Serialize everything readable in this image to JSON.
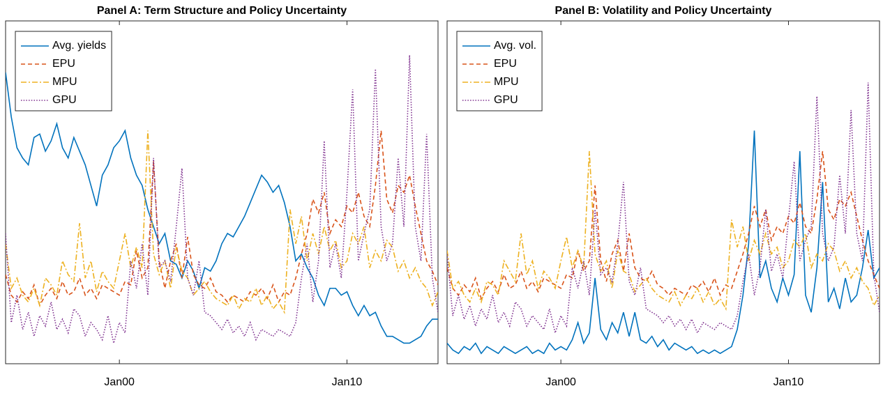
{
  "chart_data": [
    {
      "type": "line",
      "title": "Panel A: Term Structure and Policy Uncertainty",
      "legend": "upper left",
      "xlim": [
        1995,
        2014
      ],
      "ylim": [
        0,
        100
      ],
      "xticks": [
        {
          "value": 2000,
          "label": "Jan00"
        },
        {
          "value": 2010,
          "label": "Jan10"
        }
      ],
      "x": [
        1995,
        1995.25,
        1995.5,
        1995.75,
        1996,
        1996.25,
        1996.5,
        1996.75,
        1997,
        1997.25,
        1997.5,
        1997.75,
        1998,
        1998.25,
        1998.5,
        1998.75,
        1999,
        1999.25,
        1999.5,
        1999.75,
        2000,
        2000.25,
        2000.5,
        2000.75,
        2001,
        2001.25,
        2001.5,
        2001.75,
        2002,
        2002.25,
        2002.5,
        2002.75,
        2003,
        2003.25,
        2003.5,
        2003.75,
        2004,
        2004.25,
        2004.5,
        2004.75,
        2005,
        2005.25,
        2005.5,
        2005.75,
        2006,
        2006.25,
        2006.5,
        2006.75,
        2007,
        2007.25,
        2007.5,
        2007.75,
        2008,
        2008.25,
        2008.5,
        2008.75,
        2009,
        2009.25,
        2009.5,
        2009.75,
        2010,
        2010.25,
        2010.5,
        2010.75,
        2011,
        2011.25,
        2011.5,
        2011.75,
        2012,
        2012.25,
        2012.5,
        2012.75,
        2013,
        2013.25,
        2013.5,
        2013.75,
        2014
      ],
      "series": [
        {
          "name": "Avg. yields",
          "color": "#0072BD",
          "style": "solid",
          "values": [
            85,
            72,
            63,
            60,
            58,
            66,
            67,
            62,
            65,
            70,
            63,
            60,
            66,
            62,
            58,
            52,
            46,
            55,
            58,
            63,
            65,
            68,
            60,
            55,
            52,
            45,
            40,
            35,
            38,
            30,
            29,
            25,
            30,
            27,
            22,
            28,
            27,
            30,
            35,
            38,
            37,
            40,
            43,
            47,
            51,
            55,
            53,
            50,
            52,
            47,
            40,
            30,
            32,
            28,
            25,
            20,
            17,
            22,
            22,
            20,
            21,
            17,
            14,
            17,
            14,
            15,
            11,
            8,
            8,
            7,
            6,
            6,
            7,
            8,
            11,
            13,
            13
          ]
        },
        {
          "name": "EPU",
          "color": "#D95319",
          "style": "dashed",
          "values": [
            26,
            20,
            18,
            21,
            19,
            23,
            17,
            20,
            22,
            19,
            24,
            20,
            21,
            25,
            20,
            22,
            19,
            23,
            22,
            21,
            20,
            24,
            23,
            33,
            25,
            28,
            59,
            30,
            22,
            30,
            35,
            25,
            37,
            26,
            23,
            22,
            25,
            21,
            20,
            18,
            20,
            19,
            18,
            21,
            20,
            22,
            19,
            23,
            18,
            21,
            20,
            25,
            32,
            38,
            48,
            44,
            50,
            38,
            42,
            40,
            46,
            44,
            50,
            43,
            40,
            52,
            68,
            48,
            44,
            52,
            50,
            55,
            46,
            38,
            30,
            27,
            23
          ]
        },
        {
          "name": "MPU",
          "color": "#EDB120",
          "style": "dashdot",
          "values": [
            35,
            22,
            25,
            20,
            18,
            22,
            17,
            25,
            23,
            20,
            30,
            26,
            24,
            41,
            25,
            30,
            21,
            27,
            24,
            22,
            30,
            38,
            28,
            34,
            28,
            68,
            32,
            26,
            30,
            22,
            34,
            27,
            25,
            20,
            22,
            24,
            21,
            19,
            18,
            17,
            20,
            16,
            19,
            18,
            22,
            17,
            20,
            16,
            18,
            15,
            45,
            35,
            43,
            30,
            38,
            32,
            40,
            33,
            36,
            28,
            30,
            38,
            35,
            40,
            28,
            33,
            30,
            36,
            34,
            27,
            30,
            25,
            28,
            24,
            22,
            17,
            21
          ]
        },
        {
          "name": "GPU",
          "color": "#7E2F8E",
          "style": "dotted",
          "values": [
            38,
            12,
            20,
            10,
            15,
            8,
            14,
            11,
            18,
            10,
            13,
            9,
            16,
            14,
            8,
            12,
            10,
            7,
            14,
            6,
            12,
            9,
            30,
            22,
            35,
            20,
            60,
            28,
            30,
            24,
            40,
            57,
            25,
            20,
            30,
            15,
            14,
            12,
            10,
            13,
            9,
            11,
            8,
            12,
            7,
            10,
            9,
            8,
            10,
            9,
            8,
            12,
            25,
            35,
            18,
            30,
            65,
            28,
            35,
            25,
            50,
            80,
            30,
            38,
            45,
            86,
            40,
            30,
            35,
            60,
            40,
            90,
            40,
            30,
            67,
            25,
            15
          ]
        }
      ]
    },
    {
      "type": "line",
      "title": "Panel B: Volatility and Policy Uncertainty",
      "legend": "upper left",
      "xlim": [
        1995,
        2014
      ],
      "ylim": [
        0,
        100
      ],
      "xticks": [
        {
          "value": 2000,
          "label": "Jan00"
        },
        {
          "value": 2010,
          "label": "Jan10"
        }
      ],
      "x": [
        1995,
        1995.25,
        1995.5,
        1995.75,
        1996,
        1996.25,
        1996.5,
        1996.75,
        1997,
        1997.25,
        1997.5,
        1997.75,
        1998,
        1998.25,
        1998.5,
        1998.75,
        1999,
        1999.25,
        1999.5,
        1999.75,
        2000,
        2000.25,
        2000.5,
        2000.75,
        2001,
        2001.25,
        2001.5,
        2001.75,
        2002,
        2002.25,
        2002.5,
        2002.75,
        2003,
        2003.25,
        2003.5,
        2003.75,
        2004,
        2004.25,
        2004.5,
        2004.75,
        2005,
        2005.25,
        2005.5,
        2005.75,
        2006,
        2006.25,
        2006.5,
        2006.75,
        2007,
        2007.25,
        2007.5,
        2007.75,
        2008,
        2008.25,
        2008.5,
        2008.75,
        2009,
        2009.25,
        2009.5,
        2009.75,
        2010,
        2010.25,
        2010.5,
        2010.75,
        2011,
        2011.25,
        2011.5,
        2011.75,
        2012,
        2012.25,
        2012.5,
        2012.75,
        2013,
        2013.25,
        2013.5,
        2013.75,
        2014
      ],
      "series": [
        {
          "name": "Avg. vol.",
          "color": "#0072BD",
          "style": "solid",
          "values": [
            6,
            4,
            3,
            5,
            4,
            6,
            3,
            5,
            4,
            3,
            5,
            4,
            3,
            4,
            5,
            3,
            4,
            3,
            6,
            4,
            5,
            4,
            7,
            12,
            6,
            9,
            25,
            10,
            7,
            12,
            9,
            15,
            8,
            15,
            7,
            6,
            8,
            5,
            7,
            4,
            6,
            5,
            4,
            5,
            3,
            4,
            3,
            4,
            3,
            4,
            5,
            10,
            20,
            35,
            68,
            25,
            30,
            22,
            18,
            25,
            20,
            26,
            62,
            20,
            15,
            28,
            53,
            18,
            22,
            16,
            25,
            18,
            20,
            28,
            39,
            25,
            28
          ]
        },
        {
          "name": "EPU",
          "color": "#D95319",
          "style": "dashed",
          "values": [
            28,
            22,
            20,
            23,
            21,
            25,
            19,
            22,
            24,
            21,
            26,
            22,
            23,
            27,
            22,
            24,
            21,
            25,
            24,
            23,
            22,
            26,
            25,
            33,
            27,
            30,
            52,
            30,
            24,
            32,
            36,
            27,
            38,
            28,
            25,
            24,
            27,
            23,
            22,
            20,
            22,
            21,
            20,
            23,
            22,
            24,
            21,
            25,
            20,
            23,
            22,
            27,
            32,
            38,
            46,
            40,
            45,
            36,
            40,
            38,
            43,
            41,
            47,
            40,
            38,
            48,
            62,
            45,
            42,
            48,
            46,
            50,
            43,
            36,
            30,
            26,
            22
          ]
        },
        {
          "name": "MPU",
          "color": "#EDB120",
          "style": "dashdot",
          "values": [
            33,
            22,
            24,
            20,
            18,
            22,
            18,
            24,
            23,
            20,
            30,
            27,
            24,
            38,
            26,
            30,
            22,
            27,
            25,
            22,
            30,
            37,
            28,
            33,
            28,
            62,
            32,
            27,
            30,
            22,
            33,
            27,
            26,
            21,
            23,
            25,
            22,
            20,
            19,
            18,
            21,
            17,
            20,
            19,
            22,
            18,
            21,
            17,
            19,
            16,
            42,
            34,
            40,
            30,
            36,
            32,
            38,
            32,
            34,
            28,
            30,
            36,
            34,
            38,
            28,
            32,
            30,
            35,
            33,
            27,
            30,
            25,
            28,
            24,
            22,
            17,
            20
          ]
        },
        {
          "name": "GPU",
          "color": "#7E2F8E",
          "style": "dotted",
          "values": [
            32,
            14,
            20,
            13,
            17,
            11,
            16,
            13,
            20,
            12,
            15,
            11,
            18,
            16,
            11,
            14,
            12,
            10,
            16,
            9,
            14,
            11,
            28,
            22,
            30,
            20,
            45,
            26,
            28,
            24,
            35,
            53,
            24,
            20,
            28,
            16,
            15,
            14,
            12,
            14,
            11,
            13,
            10,
            13,
            9,
            12,
            11,
            10,
            12,
            11,
            10,
            14,
            24,
            32,
            20,
            28,
            45,
            27,
            32,
            25,
            42,
            59,
            30,
            36,
            40,
            78,
            38,
            30,
            34,
            55,
            38,
            74,
            38,
            30,
            82,
            26,
            15
          ]
        }
      ]
    }
  ]
}
